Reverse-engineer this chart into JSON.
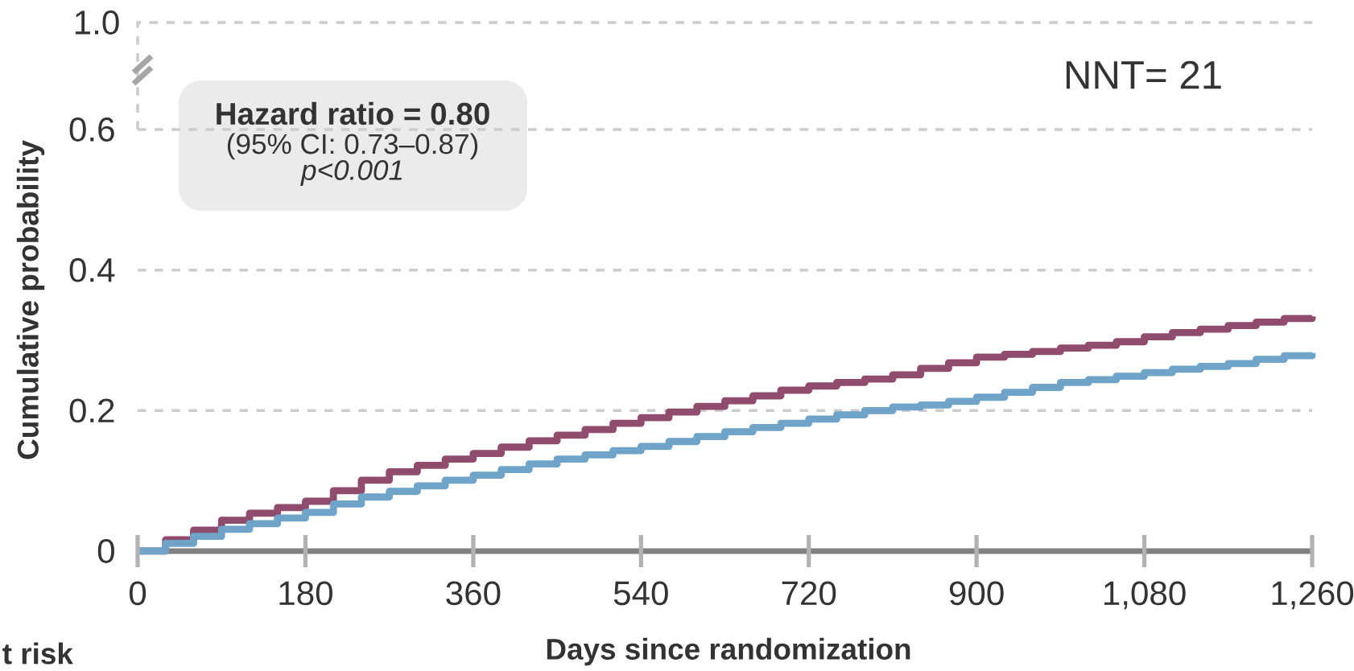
{
  "chart_data": {
    "type": "step",
    "xlabel": "Days since randomization",
    "ylabel": "Cumulative probability",
    "annotations": [
      "Hazard ratio = 0.80",
      "(95% CI: 0.73–0.87)",
      "p<0.001",
      "NNT= 21",
      "t risk",
      "1.0"
    ],
    "series": [
      {
        "color": "#904c6c",
        "x": [
          0,
          30,
          60,
          90,
          120,
          150,
          180,
          210,
          240,
          270,
          300,
          330,
          360,
          390,
          420,
          450,
          480,
          510,
          540,
          570,
          600,
          630,
          660,
          690,
          720,
          750,
          780,
          810,
          840,
          870,
          900,
          930,
          960,
          990,
          1020,
          1050,
          1080,
          1110,
          1140,
          1170,
          1200,
          1230,
          1260
        ],
        "values": [
          0,
          0.016,
          0.03,
          0.044,
          0.054,
          0.062,
          0.071,
          0.086,
          0.101,
          0.113,
          0.122,
          0.131,
          0.139,
          0.148,
          0.157,
          0.165,
          0.173,
          0.182,
          0.19,
          0.198,
          0.206,
          0.214,
          0.221,
          0.229,
          0.235,
          0.24,
          0.245,
          0.251,
          0.26,
          0.268,
          0.276,
          0.28,
          0.284,
          0.289,
          0.293,
          0.298,
          0.305,
          0.311,
          0.316,
          0.321,
          0.326,
          0.331,
          0.334
        ]
      },
      {
        "color": "#6fa3c8",
        "x": [
          0,
          30,
          60,
          90,
          120,
          150,
          180,
          210,
          240,
          270,
          300,
          330,
          360,
          390,
          420,
          450,
          480,
          510,
          540,
          570,
          600,
          630,
          660,
          690,
          720,
          750,
          780,
          810,
          840,
          870,
          900,
          930,
          960,
          990,
          1020,
          1050,
          1080,
          1110,
          1140,
          1170,
          1200,
          1230,
          1260
        ],
        "values": [
          0,
          0.011,
          0.021,
          0.031,
          0.039,
          0.047,
          0.055,
          0.067,
          0.077,
          0.085,
          0.093,
          0.101,
          0.108,
          0.116,
          0.124,
          0.131,
          0.137,
          0.143,
          0.149,
          0.156,
          0.163,
          0.17,
          0.176,
          0.182,
          0.188,
          0.194,
          0.2,
          0.205,
          0.208,
          0.213,
          0.219,
          0.226,
          0.233,
          0.24,
          0.244,
          0.249,
          0.254,
          0.259,
          0.263,
          0.267,
          0.273,
          0.278,
          0.282
        ]
      }
    ],
    "xlim": [
      0,
      1260
    ],
    "xticks": [
      0,
      180,
      360,
      540,
      720,
      900,
      {
        "value": 1080,
        "label": "1,080"
      },
      {
        "value": 1260,
        "label": "1,260"
      }
    ],
    "ylim": [
      0,
      0.6
    ],
    "yticks": [
      0,
      0.2,
      0.4,
      0.6
    ],
    "grid": "y",
    "marker": "none",
    "line_style": "solid"
  }
}
